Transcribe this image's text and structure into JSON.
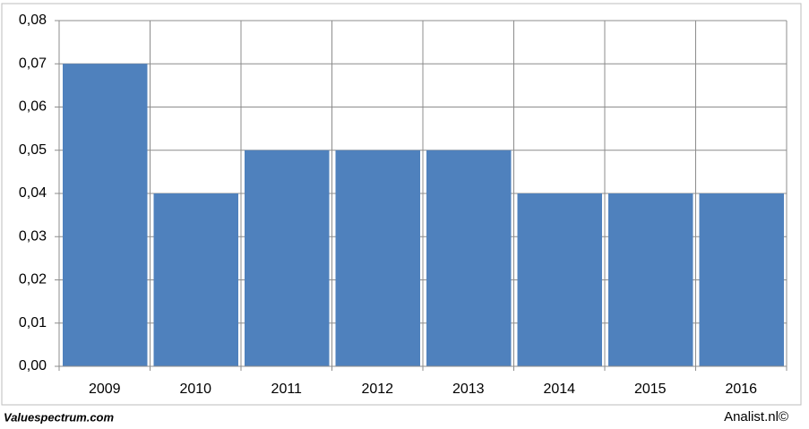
{
  "chart_data": {
    "type": "bar",
    "categories": [
      "2009",
      "2010",
      "2011",
      "2012",
      "2013",
      "2014",
      "2015",
      "2016"
    ],
    "values": [
      0.07,
      0.04,
      0.05,
      0.05,
      0.05,
      0.04,
      0.04,
      0.04
    ],
    "color": "#4f81bd",
    "ylim": [
      0,
      0.08
    ],
    "yticks": [
      {
        "value": 0,
        "label": "0,00"
      },
      {
        "value": 0.01,
        "label": "0,01"
      },
      {
        "value": 0.02,
        "label": "0,02"
      },
      {
        "value": 0.03,
        "label": "0,03"
      },
      {
        "value": 0.04,
        "label": "0,04"
      },
      {
        "value": 0.05,
        "label": "0,05"
      },
      {
        "value": 0.06,
        "label": "0,06"
      },
      {
        "value": 0.07,
        "label": "0,07"
      },
      {
        "value": 0.08,
        "label": "0,08"
      }
    ],
    "grid": true
  },
  "footer": {
    "left": "Valuespectrum.com",
    "right": "Analist.nl©"
  }
}
